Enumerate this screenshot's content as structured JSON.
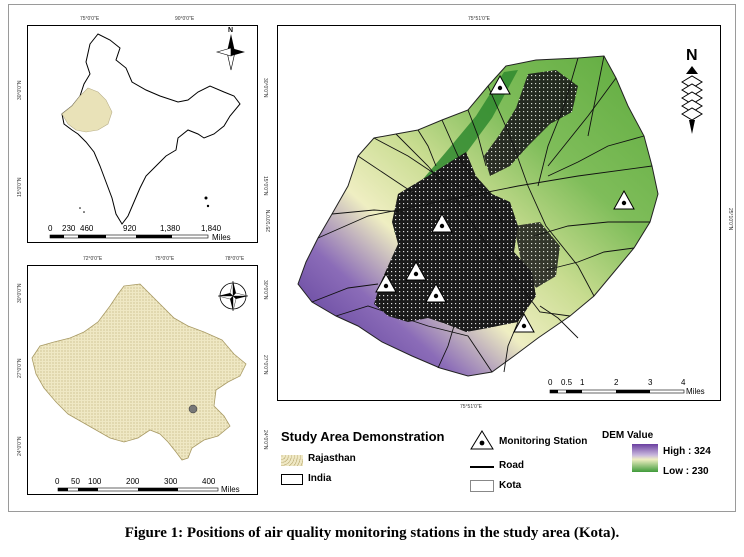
{
  "india_map": {
    "top_coords": [
      "75°0'0\"E",
      "90°0'0\"E"
    ],
    "left_coords": [
      "30°0'0\"N",
      "15°0'0\"N"
    ],
    "right_coords": [
      "30°0'0\"N",
      "15°0'0\"N"
    ],
    "scale_ticks": [
      "0",
      "230",
      "460",
      "920",
      "1,380",
      "1,840"
    ],
    "scale_unit": "Miles"
  },
  "rajasthan_map": {
    "top_coords": [
      "72°0'0\"E",
      "75°0'0\"E",
      "78°0'0\"E"
    ],
    "left_coords": [
      "30°0'0\"N",
      "27°0'0\"N",
      "24°0'0\"N"
    ],
    "right_coords": [
      "30°0'0\"N",
      "27°0'0\"N",
      "24°0'0\"N"
    ],
    "scale_ticks": [
      "0",
      "50",
      "100",
      "200",
      "300",
      "400"
    ],
    "scale_unit": "Miles"
  },
  "kota_map": {
    "top_coord": "75°51'0\"E",
    "bottom_coord": "75°51'0\"E",
    "left_coord": "25°10'0\"N",
    "right_coord": "25°10'0\"N",
    "scale_ticks": [
      "0",
      "0.5",
      "1",
      "2",
      "3",
      "4"
    ],
    "scale_unit": "Miles",
    "monitoring_stations": 7
  },
  "legend": {
    "title": "Study Area Demonstration",
    "rajasthan": "Rajasthan",
    "india": "India",
    "monitoring_station": "Monitoring Station",
    "road": "Road",
    "kota": "Kota",
    "dem_title": "DEM Value",
    "high": "High : 324",
    "low": "Low : 230"
  },
  "colors": {
    "dem_high": "#6a3fa0",
    "dem_mid": "#f0efc0",
    "dem_low": "#3f9a3a",
    "rajasthan_fill": "#e9e2b8"
  },
  "caption": "Figure 1: Positions of air quality monitoring stations in the study area (Kota)."
}
